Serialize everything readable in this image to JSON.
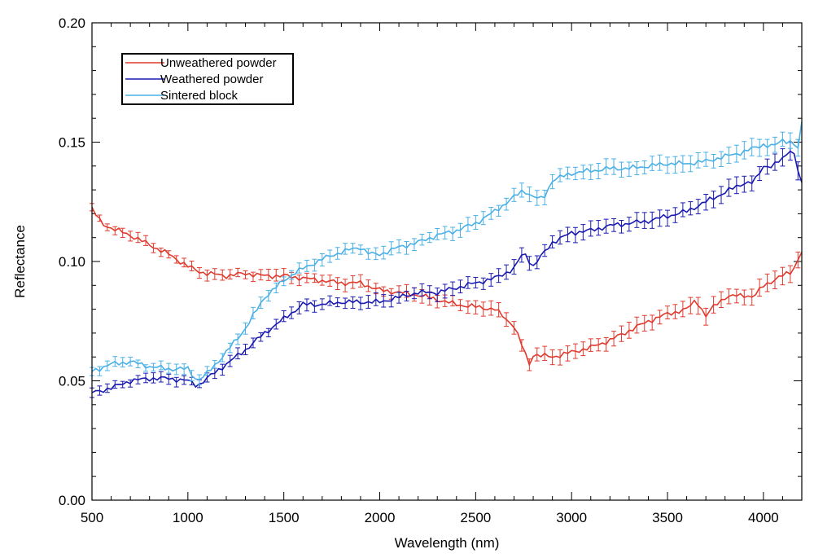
{
  "chart_data": {
    "type": "line",
    "title": "",
    "xlabel": "Wavelength (nm)",
    "ylabel": "Reflectance",
    "xlim": [
      500,
      4200
    ],
    "ylim": [
      0.0,
      0.2
    ],
    "x_ticks": [
      500,
      1000,
      1500,
      2000,
      2500,
      3000,
      3500,
      4000
    ],
    "x_tick_labels": [
      "500",
      "1000",
      "1500",
      "2000",
      "2500",
      "3000",
      "3500",
      "4000"
    ],
    "y_ticks": [
      0.0,
      0.05,
      0.1,
      0.15,
      0.2
    ],
    "y_tick_labels": [
      "0.00",
      "0.05",
      "0.10",
      "0.15",
      "0.20"
    ],
    "legend_position": "top-left",
    "series": [
      {
        "name": "Unweathered powder",
        "color": "#e03a2e",
        "points": [
          [
            500,
            0.122
          ],
          [
            550,
            0.116
          ],
          [
            600,
            0.114
          ],
          [
            700,
            0.111
          ],
          [
            800,
            0.107
          ],
          [
            900,
            0.103
          ],
          [
            1000,
            0.098
          ],
          [
            1050,
            0.096
          ],
          [
            1100,
            0.095
          ],
          [
            1200,
            0.094
          ],
          [
            1300,
            0.095
          ],
          [
            1400,
            0.094
          ],
          [
            1500,
            0.094
          ],
          [
            1600,
            0.093
          ],
          [
            1700,
            0.092
          ],
          [
            1800,
            0.091
          ],
          [
            1900,
            0.091
          ],
          [
            2000,
            0.088
          ],
          [
            2100,
            0.087
          ],
          [
            2200,
            0.086
          ],
          [
            2300,
            0.084
          ],
          [
            2400,
            0.082
          ],
          [
            2500,
            0.081
          ],
          [
            2600,
            0.08
          ],
          [
            2700,
            0.073
          ],
          [
            2750,
            0.063
          ],
          [
            2780,
            0.057
          ],
          [
            2800,
            0.061
          ],
          [
            2900,
            0.06
          ],
          [
            3000,
            0.062
          ],
          [
            3100,
            0.064
          ],
          [
            3200,
            0.067
          ],
          [
            3300,
            0.071
          ],
          [
            3400,
            0.075
          ],
          [
            3500,
            0.078
          ],
          [
            3600,
            0.08
          ],
          [
            3650,
            0.084
          ],
          [
            3700,
            0.077
          ],
          [
            3750,
            0.082
          ],
          [
            3800,
            0.085
          ],
          [
            3900,
            0.086
          ],
          [
            3950,
            0.085
          ],
          [
            4000,
            0.09
          ],
          [
            4100,
            0.094
          ],
          [
            4150,
            0.096
          ],
          [
            4200,
            0.104
          ]
        ]
      },
      {
        "name": "Weathered powder",
        "color": "#1a1ab0",
        "points": [
          [
            500,
            0.045
          ],
          [
            600,
            0.047
          ],
          [
            700,
            0.05
          ],
          [
            800,
            0.051
          ],
          [
            900,
            0.051
          ],
          [
            1000,
            0.05
          ],
          [
            1050,
            0.048
          ],
          [
            1100,
            0.051
          ],
          [
            1200,
            0.057
          ],
          [
            1300,
            0.063
          ],
          [
            1400,
            0.07
          ],
          [
            1500,
            0.076
          ],
          [
            1600,
            0.082
          ],
          [
            1700,
            0.082
          ],
          [
            1800,
            0.083
          ],
          [
            1900,
            0.083
          ],
          [
            2000,
            0.083
          ],
          [
            2100,
            0.085
          ],
          [
            2200,
            0.087
          ],
          [
            2300,
            0.087
          ],
          [
            2400,
            0.089
          ],
          [
            2500,
            0.091
          ],
          [
            2600,
            0.093
          ],
          [
            2700,
            0.097
          ],
          [
            2750,
            0.104
          ],
          [
            2800,
            0.098
          ],
          [
            2900,
            0.108
          ],
          [
            3000,
            0.112
          ],
          [
            3100,
            0.113
          ],
          [
            3200,
            0.115
          ],
          [
            3300,
            0.116
          ],
          [
            3400,
            0.117
          ],
          [
            3500,
            0.119
          ],
          [
            3600,
            0.121
          ],
          [
            3700,
            0.125
          ],
          [
            3800,
            0.129
          ],
          [
            3900,
            0.133
          ],
          [
            3950,
            0.133
          ],
          [
            4000,
            0.14
          ],
          [
            4050,
            0.14
          ],
          [
            4100,
            0.143
          ],
          [
            4150,
            0.148
          ],
          [
            4200,
            0.132
          ]
        ]
      },
      {
        "name": "Sintered block",
        "color": "#4ab0e6",
        "points": [
          [
            500,
            0.054
          ],
          [
            600,
            0.057
          ],
          [
            700,
            0.058
          ],
          [
            800,
            0.056
          ],
          [
            900,
            0.055
          ],
          [
            1000,
            0.055
          ],
          [
            1050,
            0.05
          ],
          [
            1100,
            0.053
          ],
          [
            1200,
            0.062
          ],
          [
            1300,
            0.072
          ],
          [
            1400,
            0.085
          ],
          [
            1500,
            0.092
          ],
          [
            1550,
            0.095
          ],
          [
            1600,
            0.097
          ],
          [
            1700,
            0.101
          ],
          [
            1800,
            0.104
          ],
          [
            1900,
            0.106
          ],
          [
            1950,
            0.103
          ],
          [
            2000,
            0.103
          ],
          [
            2100,
            0.106
          ],
          [
            2200,
            0.108
          ],
          [
            2300,
            0.111
          ],
          [
            2400,
            0.113
          ],
          [
            2500,
            0.116
          ],
          [
            2600,
            0.121
          ],
          [
            2700,
            0.127
          ],
          [
            2750,
            0.13
          ],
          [
            2800,
            0.127
          ],
          [
            2850,
            0.126
          ],
          [
            2900,
            0.134
          ],
          [
            3000,
            0.137
          ],
          [
            3100,
            0.138
          ],
          [
            3200,
            0.139
          ],
          [
            3300,
            0.139
          ],
          [
            3400,
            0.14
          ],
          [
            3500,
            0.141
          ],
          [
            3600,
            0.141
          ],
          [
            3700,
            0.142
          ],
          [
            3800,
            0.144
          ],
          [
            3900,
            0.146
          ],
          [
            4000,
            0.149
          ],
          [
            4050,
            0.148
          ],
          [
            4100,
            0.151
          ],
          [
            4150,
            0.15
          ],
          [
            4180,
            0.147
          ],
          [
            4200,
            0.158
          ]
        ]
      }
    ]
  }
}
